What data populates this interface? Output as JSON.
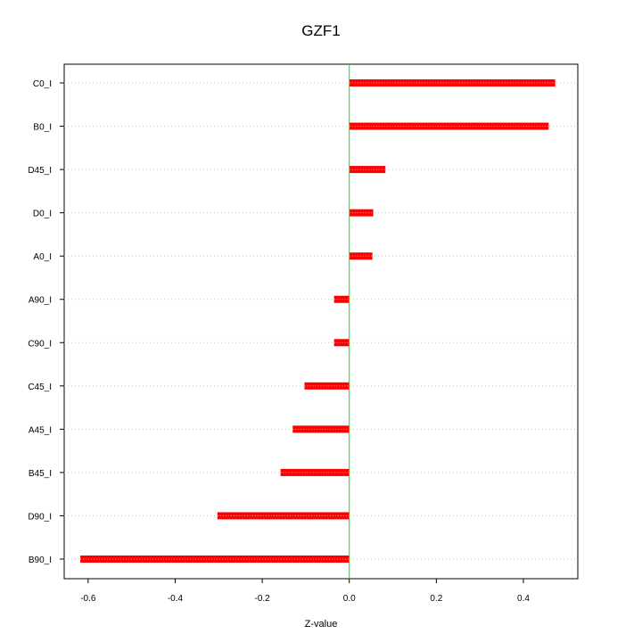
{
  "chart_data": {
    "type": "bar",
    "orientation": "horizontal",
    "title": "GZF1",
    "xlabel": "Z-value",
    "ylabel": "",
    "xlim": [
      -0.655,
      0.525
    ],
    "xticks": [
      -0.6,
      -0.4,
      -0.2,
      0.0,
      0.2,
      0.4
    ],
    "xtick_labels": [
      "-0.6",
      "-0.4",
      "-0.2",
      "0.0",
      "0.2",
      "0.4"
    ],
    "categories": [
      "C0_I",
      "B0_I",
      "D45_I",
      "D0_I",
      "A0_I",
      "A90_I",
      "C90_I",
      "C45_I",
      "A45_I",
      "B45_I",
      "D90_I",
      "B90_I"
    ],
    "values": [
      0.473,
      0.458,
      0.083,
      0.055,
      0.053,
      -0.035,
      -0.035,
      -0.103,
      -0.13,
      -0.158,
      -0.303,
      -0.618
    ],
    "grid": true,
    "reference_line": 0,
    "colors": {
      "bar": "#ff0000",
      "bar_highlight": "#ff9999",
      "zero_line": "#00ee00",
      "grid": "#c8c8c8"
    }
  }
}
